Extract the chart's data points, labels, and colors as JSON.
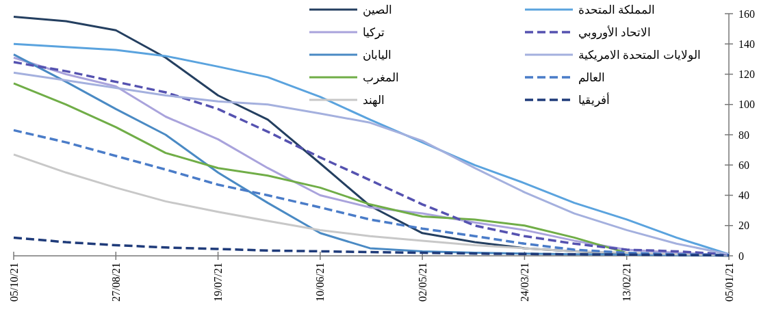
{
  "chart_data": {
    "type": "line",
    "x": [
      "2021-10-05",
      "2021-09-15",
      "2021-08-27",
      "2021-08-08",
      "2021-07-19",
      "2021-06-30",
      "2021-06-10",
      "2021-05-22",
      "2021-05-02",
      "2021-04-12",
      "2021-03-24",
      "2021-03-05",
      "2021-02-13",
      "2021-01-25",
      "2021-01-05"
    ],
    "xlim": [
      "2021-10-05",
      "2021-01-05"
    ],
    "xticks": [
      {
        "value": "2021-10-05",
        "label": "05/10/21"
      },
      {
        "value": "2021-08-27",
        "label": "27/08/21"
      },
      {
        "value": "2021-07-19",
        "label": "19/07/21"
      },
      {
        "value": "2021-06-10",
        "label": "10/06/21"
      },
      {
        "value": "2021-05-02",
        "label": "02/05/21"
      },
      {
        "value": "2021-03-24",
        "label": "24/03/21"
      },
      {
        "value": "2021-02-13",
        "label": "13/02/21"
      },
      {
        "value": "2021-01-05",
        "label": "05/01/21"
      }
    ],
    "ylim": [
      0,
      160
    ],
    "yticks": [
      0,
      20,
      40,
      60,
      80,
      100,
      120,
      140,
      160
    ],
    "grid": false,
    "legend": "top",
    "series": [
      {
        "name": "الصين",
        "color": "#243f60",
        "line_style": "solid",
        "values": [
          158,
          155,
          149,
          131,
          106,
          90,
          61,
          33,
          15,
          9,
          5,
          3,
          1.5,
          0.7,
          0
        ]
      },
      {
        "name": "تركيا",
        "color": "#a9a3dc",
        "line_style": "solid",
        "values": [
          131,
          120,
          112,
          92,
          77,
          58,
          40,
          32,
          28,
          22,
          17,
          10,
          4,
          2,
          0.5
        ]
      },
      {
        "name": "اليابان",
        "color": "#4a8ac4",
        "line_style": "solid",
        "values": [
          133,
          115,
          97,
          80,
          55,
          35,
          15,
          5,
          3,
          2,
          1.5,
          1,
          0.8,
          0.5,
          0.3
        ]
      },
      {
        "name": "المغرب",
        "color": "#70ad47",
        "line_style": "solid",
        "values": [
          114,
          100,
          85,
          68,
          58,
          53,
          45,
          34,
          26,
          24,
          20,
          12,
          2,
          null,
          null
        ]
      },
      {
        "name": "الهند",
        "color": "#c8c8c8",
        "line_style": "solid",
        "values": [
          67,
          55,
          45,
          36,
          29,
          23,
          17,
          13,
          10,
          7,
          5,
          3,
          2,
          1,
          0.5
        ]
      },
      {
        "name": "المملكة المتحدة",
        "color": "#5aa3de",
        "line_style": "solid",
        "values": [
          140,
          138,
          136,
          132,
          125,
          118,
          105,
          90,
          75,
          60,
          48,
          35,
          24,
          12,
          1
        ]
      },
      {
        "name": "الاتحاد الأوروبي",
        "color": "#5552b0",
        "line_style": "dashed",
        "values": [
          128,
          122,
          115,
          108,
          97,
          82,
          65,
          50,
          34,
          20,
          13,
          8,
          4,
          3,
          1
        ]
      },
      {
        "name": "الولايات المتحدة الامريكية",
        "color": "#a4b0de",
        "line_style": "solid",
        "values": [
          121,
          116,
          111,
          106,
          102,
          100,
          94,
          88,
          76,
          58,
          42,
          28,
          17,
          8,
          1
        ]
      },
      {
        "name": "العالم",
        "color": "#4a7cc8",
        "line_style": "dashed",
        "values": [
          83,
          75,
          66,
          57,
          47,
          40,
          32,
          24,
          18,
          13,
          8,
          4,
          2,
          1,
          0.5
        ]
      },
      {
        "name": "أفريقيا",
        "color": "#1f3b7a",
        "line_style": "dashed",
        "values": [
          12,
          9,
          7,
          5.5,
          4.5,
          3.5,
          3,
          2.5,
          2,
          1.5,
          1.2,
          1,
          0.8,
          0.5,
          0.3
        ]
      }
    ]
  }
}
